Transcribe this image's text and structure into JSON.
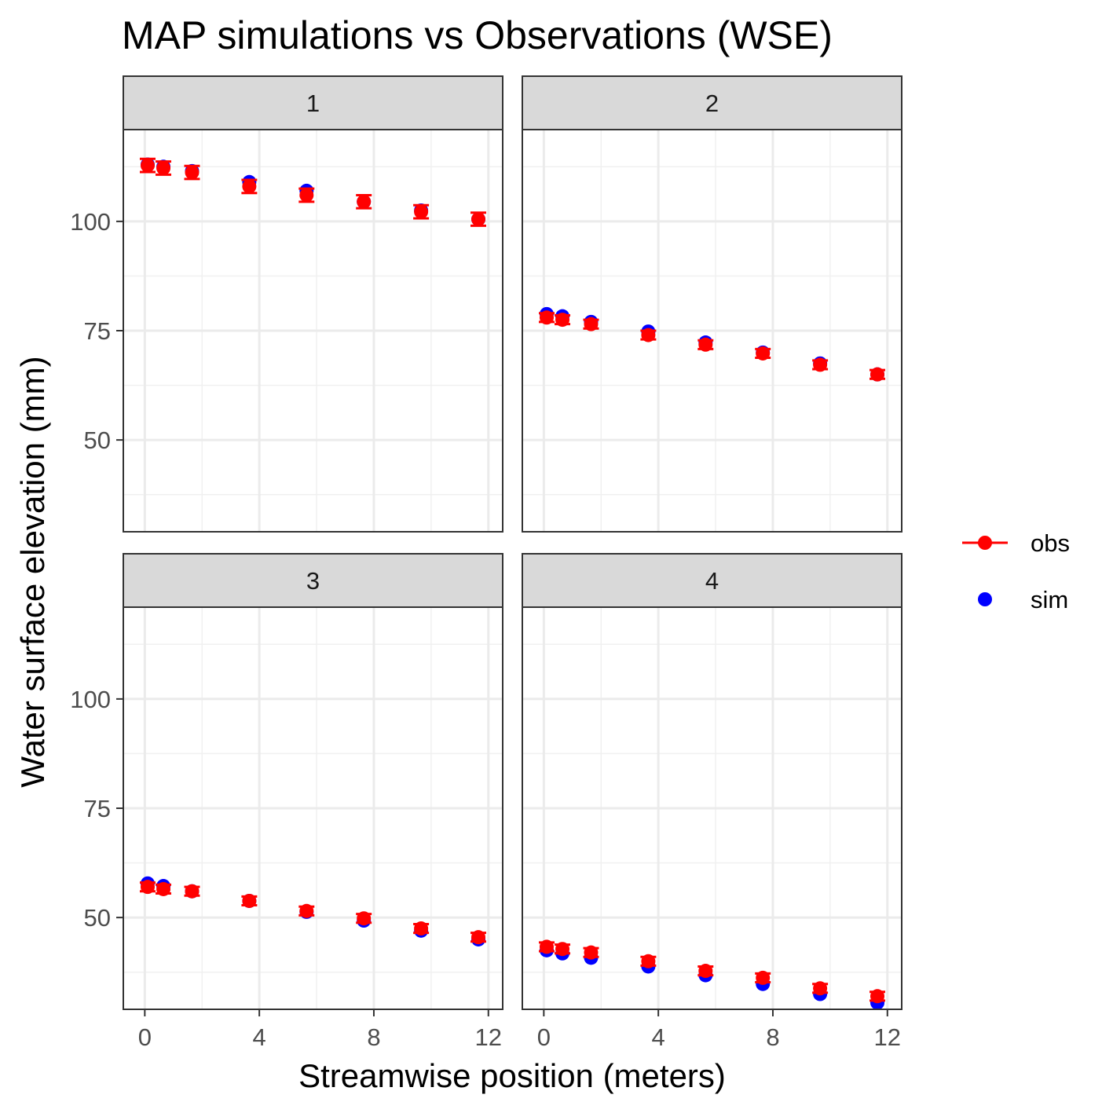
{
  "chart_data": {
    "type": "scatter",
    "title": "MAP simulations vs Observations (WSE)",
    "xlabel": "Streamwise position (meters)",
    "ylabel": "Water surface elevation (mm)",
    "xlim": [
      -0.75,
      12.5
    ],
    "ylim": [
      29,
      121
    ],
    "x_ticks": [
      0,
      4,
      8,
      12
    ],
    "y_ticks": [
      50,
      75,
      100
    ],
    "grid": true,
    "legend_position": "right",
    "legend": [
      {
        "key": "obs",
        "label": "obs",
        "color": "#FF0000",
        "glyph": "point-errorbar"
      },
      {
        "key": "sim",
        "label": "sim",
        "color": "#0000FF",
        "glyph": "point"
      }
    ],
    "x": [
      0.1,
      0.65,
      1.65,
      3.65,
      5.65,
      7.65,
      9.65,
      11.65
    ],
    "panels": [
      {
        "label": "1",
        "sim": [
          113.0,
          112.5,
          111.5,
          109.0,
          107.0,
          104.5,
          102.5,
          100.5
        ],
        "obs": [
          112.8,
          112.2,
          111.2,
          108.0,
          106.0,
          104.5,
          102.2,
          100.5
        ],
        "err": [
          1.5,
          1.5,
          1.5,
          1.5,
          1.5,
          1.5,
          1.5,
          1.5
        ]
      },
      {
        "label": "2",
        "sim": [
          78.8,
          78.3,
          77.0,
          74.8,
          72.3,
          70.0,
          67.5,
          65.0
        ],
        "obs": [
          78.0,
          77.5,
          76.5,
          74.0,
          71.8,
          69.8,
          67.2,
          65.0
        ],
        "err": [
          1.0,
          1.0,
          1.0,
          1.0,
          1.0,
          1.0,
          1.0,
          1.0
        ]
      },
      {
        "label": "3",
        "sim": [
          57.8,
          57.2,
          56.0,
          53.8,
          51.3,
          49.3,
          47.0,
          45.0
        ],
        "obs": [
          57.0,
          56.5,
          56.0,
          53.8,
          51.5,
          49.8,
          47.5,
          45.5
        ],
        "err": [
          1.0,
          1.0,
          1.0,
          1.0,
          1.0,
          1.0,
          1.0,
          1.0
        ]
      },
      {
        "label": "4",
        "sim": [
          42.5,
          41.8,
          40.8,
          38.8,
          36.8,
          34.8,
          32.5,
          30.5
        ],
        "obs": [
          43.3,
          42.8,
          42.0,
          40.0,
          37.8,
          36.2,
          33.8,
          32.0
        ],
        "err": [
          1.0,
          1.0,
          1.0,
          1.0,
          1.0,
          1.0,
          1.0,
          1.0
        ]
      }
    ]
  }
}
